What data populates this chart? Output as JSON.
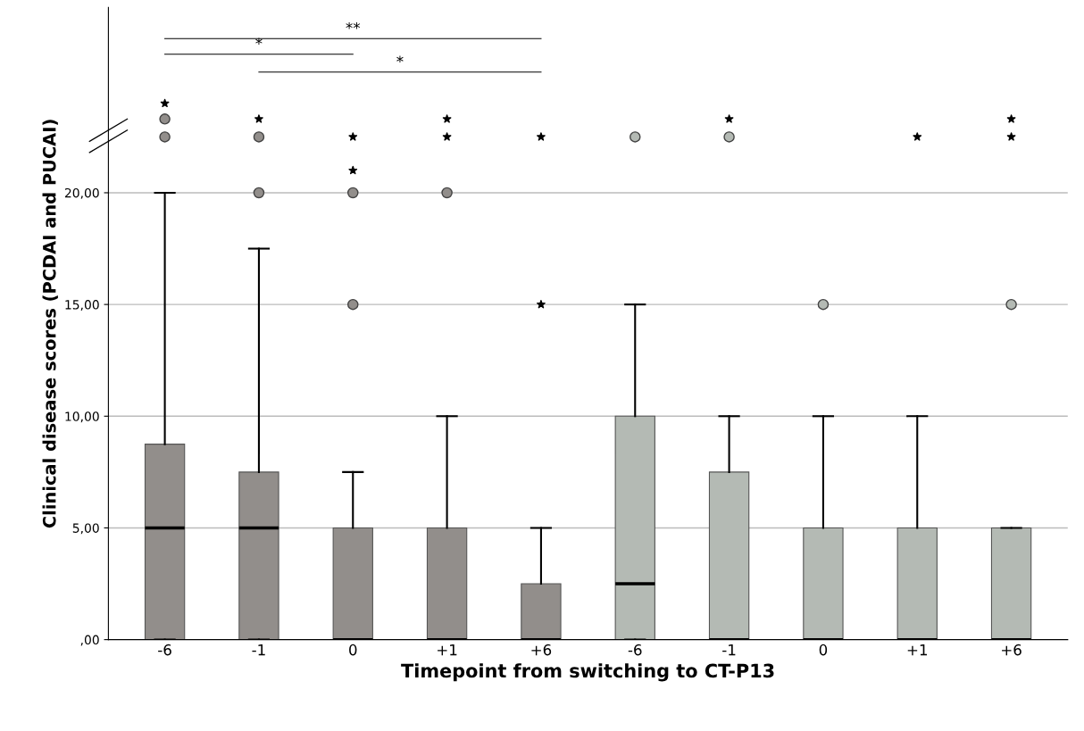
{
  "chart_data": {
    "type": "box",
    "ylabel": "Clinical disease scores (PCDAI and PUCAI)",
    "xlabel": "Timepoint from switching to CT-P13",
    "categories": [
      "-6",
      "-1",
      "0",
      "+1",
      "+6",
      "-6",
      "-1",
      "0",
      "+1",
      "+6"
    ],
    "colors": [
      "#928e8b",
      "#928e8b",
      "#928e8b",
      "#928e8b",
      "#928e8b",
      "#b4bab4",
      "#b4bab4",
      "#b4bab4",
      "#b4bab4",
      "#b4bab4"
    ],
    "boxes": [
      {
        "low": 0,
        "q1": 0,
        "median": 5,
        "q3": 8.75,
        "high": 20,
        "outliers": [
          22.5,
          23.3
        ]
      },
      {
        "low": 0,
        "q1": 0,
        "median": 5,
        "q3": 7.5,
        "high": 17.5,
        "outliers": [
          20,
          22.5
        ]
      },
      {
        "low": 0,
        "q1": 0,
        "median": 0,
        "q3": 5,
        "high": 7.5,
        "outliers": [
          15,
          20
        ]
      },
      {
        "low": 0,
        "q1": 0,
        "median": 0,
        "q3": 5,
        "high": 10,
        "outliers": [
          20
        ]
      },
      {
        "low": 0,
        "q1": 0,
        "median": 0,
        "q3": 2.5,
        "high": 5
      },
      {
        "low": 0,
        "q1": 0,
        "median": 2.5,
        "q3": 10,
        "high": 15,
        "outliers": [
          22.5
        ]
      },
      {
        "low": 0,
        "q1": 0,
        "median": 0,
        "q3": 7.5,
        "high": 10,
        "outliers": [
          22.5
        ]
      },
      {
        "low": 0,
        "q1": 0,
        "median": 0,
        "q3": 5,
        "high": 10,
        "outliers": [
          15
        ]
      },
      {
        "low": 0,
        "q1": 0,
        "median": 0,
        "q3": 5,
        "high": 10
      },
      {
        "low": 0,
        "q1": 0,
        "median": 0,
        "q3": 5,
        "high": 5,
        "outliers": [
          15
        ]
      }
    ],
    "series": [
      {
        "type": "scatter",
        "marker": "star",
        "color": "#000000",
        "values": [
          24,
          23.3,
          21,
          22.5,
          15,
          null,
          23.3,
          null,
          22.5,
          22.5
        ]
      },
      {
        "type": "scatter",
        "marker": "star",
        "color": "#000000",
        "values": [
          null,
          null,
          22.5,
          23.3,
          22.5,
          null,
          null,
          null,
          null,
          23.3
        ]
      }
    ],
    "ylim": [
      0,
      28.3
    ],
    "yticks": [
      {
        "value": 0,
        "label": ",00"
      },
      {
        "value": 5,
        "label": "5,00"
      },
      {
        "value": 10,
        "label": "10,00"
      },
      {
        "value": 15,
        "label": "15,00"
      },
      {
        "value": 20,
        "label": "20,00"
      }
    ],
    "grid": "y",
    "annotations": [
      "**",
      "*",
      "*"
    ]
  }
}
